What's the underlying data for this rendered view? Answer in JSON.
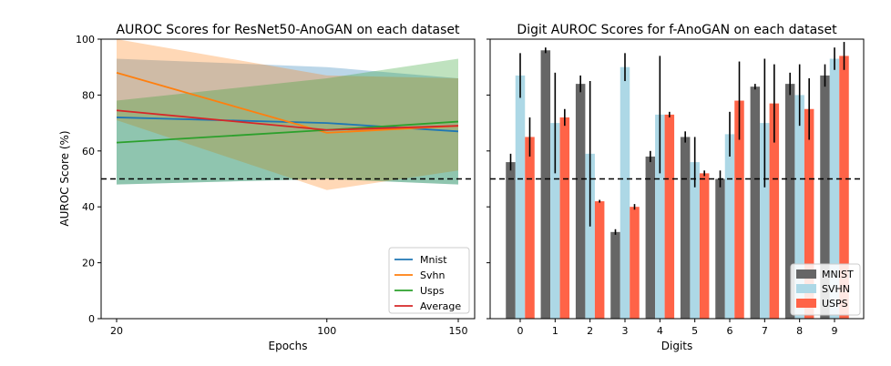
{
  "chart_data": [
    {
      "type": "line",
      "title": "AUROC Scores for ResNet50-AnoGAN on each dataset",
      "xlabel": "Epochs",
      "ylabel": "AUROC Score (%)",
      "x": [
        20,
        100,
        150
      ],
      "x_ticks": [
        "20",
        "100",
        "150"
      ],
      "y_ticks": [
        "0",
        "20",
        "40",
        "60",
        "80",
        "100"
      ],
      "ylim": [
        0,
        100
      ],
      "grid": false,
      "legend_position": "lower-right",
      "reference_line": 50,
      "series": [
        {
          "name": "Mnist",
          "color": "#1f77b4",
          "values": [
            72.0,
            70.0,
            67.0
          ],
          "band_low": [
            48.0,
            50.0,
            48.0
          ],
          "band_high": [
            93.0,
            90.0,
            86.0
          ]
        },
        {
          "name": "Svhn",
          "color": "#ff7f0e",
          "values": [
            88.0,
            66.5,
            69.0
          ],
          "band_low": [
            71.0,
            46.0,
            53.0
          ],
          "band_high": [
            100.0,
            87.0,
            86.0
          ]
        },
        {
          "name": "Usps",
          "color": "#2ca02c",
          "values": [
            63.0,
            67.5,
            70.5
          ],
          "band_low": [
            48.0,
            50.0,
            48.0
          ],
          "band_high": [
            78.0,
            86.0,
            93.0
          ]
        },
        {
          "name": "Average",
          "color": "#d62728",
          "values": [
            74.5,
            67.5,
            69.0
          ],
          "band_low": null,
          "band_high": null
        }
      ]
    },
    {
      "type": "bar",
      "title": "Digit AUROC Scores for f-AnoGAN on each dataset",
      "xlabel": "Digits",
      "ylabel": "",
      "categories": [
        "0",
        "1",
        "2",
        "3",
        "4",
        "5",
        "6",
        "7",
        "8",
        "9"
      ],
      "ylim": [
        0,
        100
      ],
      "grid": false,
      "legend_position": "lower-right",
      "reference_line": 50,
      "series": [
        {
          "name": "MNIST",
          "color": "#666666",
          "values": [
            56,
            96,
            84,
            31,
            58,
            65,
            50,
            83,
            84,
            87
          ],
          "errors": [
            3,
            1,
            3,
            1,
            2,
            2,
            3,
            1,
            4,
            4
          ]
        },
        {
          "name": "SVHN",
          "color": "#add8e6",
          "values": [
            87,
            70,
            59,
            90,
            73,
            56,
            66,
            70,
            80,
            93
          ],
          "errors": [
            8,
            18,
            26,
            5,
            21,
            9,
            8,
            23,
            11,
            4
          ]
        },
        {
          "name": "USPS",
          "color": "#ff6347",
          "values": [
            65,
            72,
            42,
            40,
            73,
            52,
            78,
            77,
            75,
            94
          ],
          "errors": [
            7,
            3,
            0.5,
            1,
            1,
            1,
            14,
            14,
            11,
            5
          ]
        }
      ]
    }
  ]
}
